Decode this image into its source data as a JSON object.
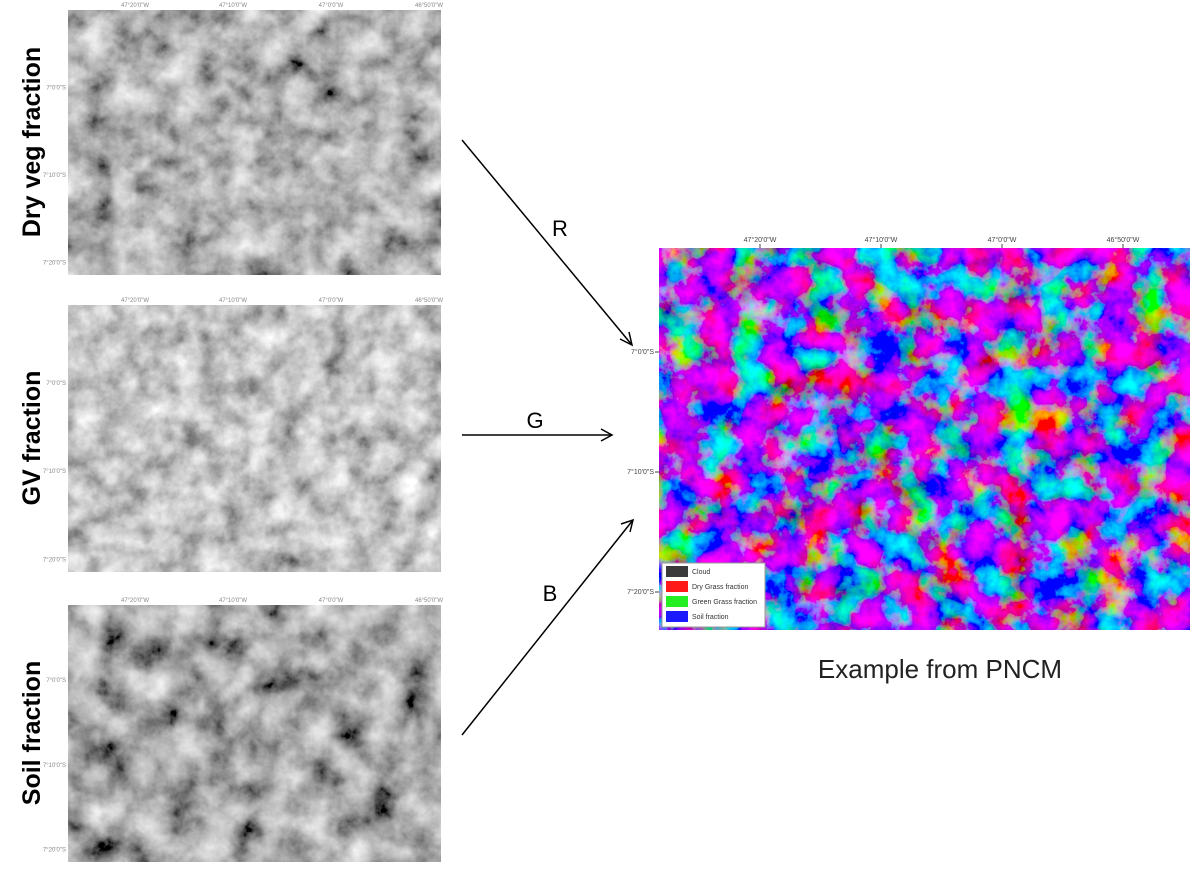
{
  "panels": [
    {
      "label": "Dry veg fraction"
    },
    {
      "label": "GV fraction"
    },
    {
      "label": "Soil fraction"
    }
  ],
  "arrows": [
    {
      "label": "R"
    },
    {
      "label": "G"
    },
    {
      "label": "B"
    }
  ],
  "map": {
    "caption": "Example from PNCM",
    "lon_labels": [
      "47°20'0\"W",
      "47°10'0\"W",
      "47°0'0\"W",
      "46°50'0\"W"
    ],
    "lat_labels": [
      "7°0'0\"S",
      "7°10'0\"S",
      "7°20'0\"S"
    ],
    "legend": [
      {
        "label": "Cloud",
        "color": "#3a3a3a"
      },
      {
        "label": "Dry Grass fraction",
        "color": "#ff1a1a"
      },
      {
        "label": "Green Grass fraction",
        "color": "#22ee22"
      },
      {
        "label": "Soil fraction",
        "color": "#1a1aff"
      }
    ]
  }
}
